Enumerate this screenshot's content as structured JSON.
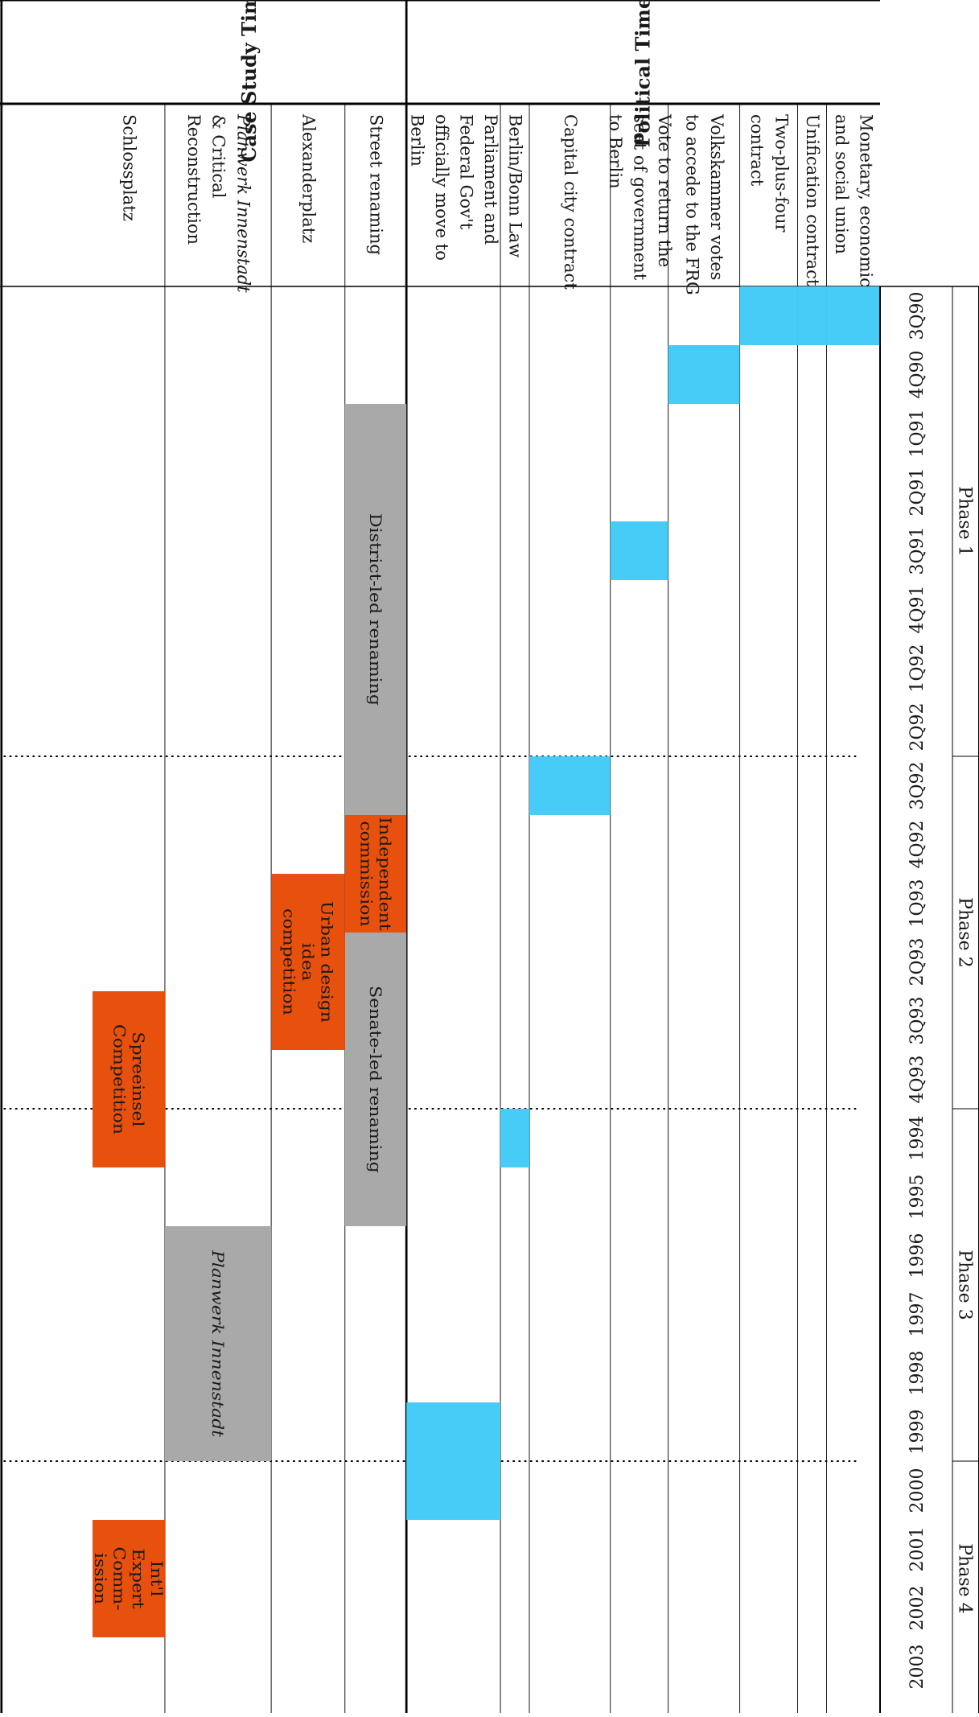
{
  "phases": [
    "Phase 1",
    "Phase 2",
    "Phase 3",
    "Phase 4"
  ],
  "periods": [
    "3Q90",
    "4Q90",
    "1Q91",
    "2Q91",
    "3Q91",
    "4Q91",
    "1Q92",
    "2Q92",
    "3Q92",
    "4Q92",
    "1Q93",
    "2Q93",
    "3Q93",
    "4Q93",
    "1994",
    "1995",
    "1996",
    "1997",
    "1998",
    "1999",
    "2000",
    "2001",
    "2002",
    "2003"
  ],
  "sections": {
    "political": "Political Timeline",
    "case_study": "Case Study Timeline"
  },
  "political_rows": [
    {
      "label": [
        "Monetary, economic",
        "and social union"
      ],
      "bars": [
        {
          "start": "3Q90",
          "end": "3Q90",
          "kind": "political",
          "text": []
        }
      ]
    },
    {
      "label": [
        "Unification contract"
      ],
      "bars": [
        {
          "start": "3Q90",
          "end": "3Q90",
          "kind": "political",
          "text": []
        }
      ]
    },
    {
      "label": [
        "Two-plus-four",
        "contract"
      ],
      "bars": [
        {
          "start": "3Q90",
          "end": "3Q90",
          "kind": "political",
          "text": []
        }
      ]
    },
    {
      "label": [
        "Volkskammer votes",
        "to accede to the FRG"
      ],
      "bars": [
        {
          "start": "4Q90",
          "end": "4Q90",
          "kind": "political",
          "text": []
        }
      ]
    },
    {
      "label": [
        "Vote to return the",
        "seat of government",
        "to Berlin"
      ],
      "bars": [
        {
          "start": "3Q91",
          "end": "3Q91",
          "kind": "political",
          "text": []
        }
      ]
    },
    {
      "label": [
        "Capital city contract"
      ],
      "bars": [
        {
          "start": "3Q92",
          "end": "3Q92",
          "kind": "political",
          "text": []
        }
      ]
    },
    {
      "label": [
        "Berlin/Bonn Law"
      ],
      "bars": [
        {
          "start": "1994",
          "end": "1994",
          "kind": "political",
          "text": []
        }
      ]
    },
    {
      "label": [
        "Parliament and",
        "Federal Gov't",
        "officially move to",
        "Berlin"
      ],
      "bars": [
        {
          "start": "1999",
          "end": "2000",
          "kind": "political",
          "text": []
        }
      ]
    }
  ],
  "case_rows": [
    {
      "label": [
        "Street renaming"
      ],
      "bars": [
        {
          "start": "1Q91",
          "end": "3Q92",
          "kind": "renaming",
          "text": [
            "District-led renaming"
          ]
        },
        {
          "start": "4Q92",
          "end": "1Q93",
          "kind": "competition",
          "text": [
            "Independent",
            "commission"
          ]
        },
        {
          "start": "2Q93",
          "end": "1995",
          "kind": "renaming",
          "text": [
            "Senate-led renaming"
          ]
        }
      ]
    },
    {
      "label": [
        "Alexanderplatz"
      ],
      "bars": [
        {
          "start": "1Q93",
          "end": "3Q93",
          "kind": "competition",
          "text": [
            "Urban design",
            "idea",
            "competition"
          ]
        }
      ]
    },
    {
      "label": [
        "Planwerk Innenstadt",
        "& Critical",
        "Reconstruction"
      ],
      "italic_first": true,
      "bars": [
        {
          "start": "1996",
          "end": "1999",
          "kind": "renaming",
          "text": [
            "Planwerk Innenstadt"
          ],
          "italic": true
        }
      ]
    },
    {
      "label": [
        "Schlossplatz"
      ],
      "bars": [
        {
          "start": "1994",
          "end": "3Q93",
          "kind": "competition",
          "text": [
            "Spreeinsel",
            "Competition"
          ]
        },
        {
          "start": "2001",
          "end": "2002",
          "kind": "competition",
          "text": [
            "Int'l",
            "Expert",
            "Comm-",
            "ission"
          ]
        }
      ]
    }
  ],
  "colors": {
    "political": "#46ccf6",
    "renaming": "#a9a9a9",
    "competition": "#e8500e",
    "line": "#000000"
  }
}
